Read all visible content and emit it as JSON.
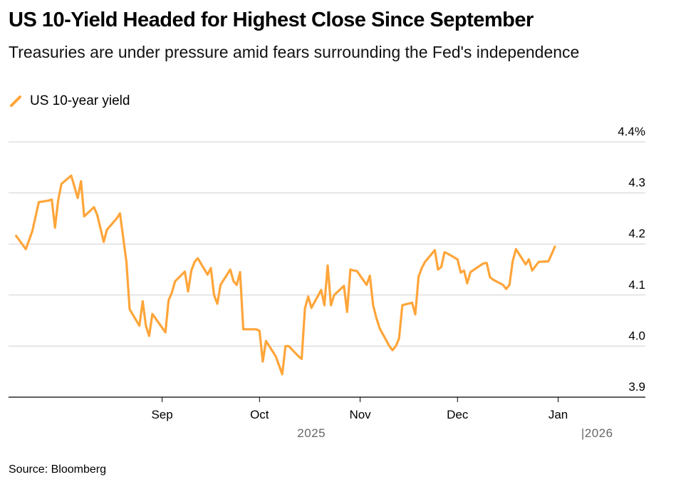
{
  "header": {
    "title": "US 10-Yield Headed for Highest Close Since September",
    "subtitle": "Treasuries are under pressure amid fears surrounding the Fed's independence"
  },
  "footer": {
    "source": "Source: Bloomberg"
  },
  "colors": {
    "line": "#FFA53A",
    "grid": "#D0D0D0",
    "axis": "#000000"
  },
  "chart_data": {
    "type": "line",
    "title": "US 10-Yield Headed for Highest Close Since September",
    "subtitle": "Treasuries are under pressure amid fears surrounding the Fed's independence",
    "legend": "top-left",
    "grid": true,
    "ylim": [
      3.9,
      4.4
    ],
    "xlim": [
      "2025-07-17",
      "2026-01-27"
    ],
    "y_ticks": [
      {
        "value": 4.4,
        "label": "4.4%"
      },
      {
        "value": 4.3,
        "label": "4.3"
      },
      {
        "value": 4.2,
        "label": "4.2"
      },
      {
        "value": 4.1,
        "label": "4.1"
      },
      {
        "value": 4.0,
        "label": "4.0"
      },
      {
        "value": 3.9,
        "label": "3.9"
      }
    ],
    "x_ticks": [
      {
        "date": "2025-09-01",
        "label": "Sep"
      },
      {
        "date": "2025-10-01",
        "label": "Oct"
      },
      {
        "date": "2025-11-01",
        "label": "Nov"
      },
      {
        "date": "2025-12-01",
        "label": "Dec"
      },
      {
        "date": "2026-01-01",
        "label": "Jan"
      }
    ],
    "year_labels": [
      {
        "date": "2025-10-17",
        "label": "2025"
      },
      {
        "date": "2026-01-13",
        "label": "|2026"
      }
    ],
    "series": [
      {
        "name": "US 10-year yield",
        "points": [
          [
            "2025-07-18",
            4.216
          ],
          [
            "2025-07-21",
            4.19
          ],
          [
            "2025-07-23",
            4.225
          ],
          [
            "2025-07-25",
            4.282
          ],
          [
            "2025-07-28",
            4.285
          ],
          [
            "2025-07-29",
            4.287
          ],
          [
            "2025-07-30",
            4.232
          ],
          [
            "2025-07-31",
            4.287
          ],
          [
            "2025-08-01",
            4.318
          ],
          [
            "2025-08-04",
            4.334
          ],
          [
            "2025-08-05",
            4.312
          ],
          [
            "2025-08-06",
            4.29
          ],
          [
            "2025-08-07",
            4.323
          ],
          [
            "2025-08-08",
            4.254
          ],
          [
            "2025-08-11",
            4.272
          ],
          [
            "2025-08-12",
            4.257
          ],
          [
            "2025-08-14",
            4.204
          ],
          [
            "2025-08-15",
            4.228
          ],
          [
            "2025-08-18",
            4.25
          ],
          [
            "2025-08-19",
            4.26
          ],
          [
            "2025-08-21",
            4.165
          ],
          [
            "2025-08-22",
            4.072
          ],
          [
            "2025-08-25",
            4.04
          ],
          [
            "2025-08-26",
            4.088
          ],
          [
            "2025-08-27",
            4.04
          ],
          [
            "2025-08-28",
            4.02
          ],
          [
            "2025-08-29",
            4.063
          ],
          [
            "2025-09-02",
            4.027
          ],
          [
            "2025-09-03",
            4.09
          ],
          [
            "2025-09-04",
            4.105
          ],
          [
            "2025-09-05",
            4.127
          ],
          [
            "2025-09-08",
            4.146
          ],
          [
            "2025-09-09",
            4.107
          ],
          [
            "2025-09-10",
            4.148
          ],
          [
            "2025-09-11",
            4.165
          ],
          [
            "2025-09-12",
            4.172
          ],
          [
            "2025-09-15",
            4.14
          ],
          [
            "2025-09-16",
            4.153
          ],
          [
            "2025-09-17",
            4.1
          ],
          [
            "2025-09-18",
            4.083
          ],
          [
            "2025-09-19",
            4.12
          ],
          [
            "2025-09-22",
            4.15
          ],
          [
            "2025-09-23",
            4.127
          ],
          [
            "2025-09-24",
            4.12
          ],
          [
            "2025-09-25",
            4.145
          ],
          [
            "2025-09-26",
            4.033
          ],
          [
            "2025-09-29",
            4.033
          ],
          [
            "2025-09-30",
            4.033
          ],
          [
            "2025-10-01",
            4.03
          ],
          [
            "2025-10-02",
            3.97
          ],
          [
            "2025-10-03",
            4.01
          ],
          [
            "2025-10-06",
            3.98
          ],
          [
            "2025-10-08",
            3.945
          ],
          [
            "2025-10-09",
            4.0
          ],
          [
            "2025-10-10",
            4.0
          ],
          [
            "2025-10-13",
            3.98
          ],
          [
            "2025-10-14",
            3.975
          ],
          [
            "2025-10-15",
            4.074
          ],
          [
            "2025-10-16",
            4.097
          ],
          [
            "2025-10-17",
            4.075
          ],
          [
            "2025-10-20",
            4.11
          ],
          [
            "2025-10-21",
            4.08
          ],
          [
            "2025-10-22",
            4.158
          ],
          [
            "2025-10-23",
            4.08
          ],
          [
            "2025-10-24",
            4.1
          ],
          [
            "2025-10-27",
            4.118
          ],
          [
            "2025-10-28",
            4.067
          ],
          [
            "2025-10-29",
            4.15
          ],
          [
            "2025-10-30",
            4.148
          ],
          [
            "2025-10-31",
            4.147
          ],
          [
            "2025-11-03",
            4.12
          ],
          [
            "2025-11-04",
            4.138
          ],
          [
            "2025-11-05",
            4.08
          ],
          [
            "2025-11-06",
            4.055
          ],
          [
            "2025-11-07",
            4.035
          ],
          [
            "2025-11-10",
            4.0
          ],
          [
            "2025-11-11",
            3.992
          ],
          [
            "2025-11-12",
            4.0
          ],
          [
            "2025-11-13",
            4.015
          ],
          [
            "2025-11-14",
            4.08
          ],
          [
            "2025-11-17",
            4.085
          ],
          [
            "2025-11-18",
            4.062
          ],
          [
            "2025-11-19",
            4.136
          ],
          [
            "2025-11-20",
            4.153
          ],
          [
            "2025-11-21",
            4.165
          ],
          [
            "2025-11-24",
            4.188
          ],
          [
            "2025-11-25",
            4.15
          ],
          [
            "2025-11-26",
            4.155
          ],
          [
            "2025-11-27",
            4.184
          ],
          [
            "2025-11-28",
            4.181
          ],
          [
            "2025-12-01",
            4.17
          ],
          [
            "2025-12-02",
            4.144
          ],
          [
            "2025-12-03",
            4.148
          ],
          [
            "2025-12-04",
            4.123
          ],
          [
            "2025-12-05",
            4.145
          ],
          [
            "2025-12-08",
            4.158
          ],
          [
            "2025-12-09",
            4.162
          ],
          [
            "2025-12-10",
            4.163
          ],
          [
            "2025-12-11",
            4.135
          ],
          [
            "2025-12-12",
            4.13
          ],
          [
            "2025-12-15",
            4.12
          ],
          [
            "2025-12-16",
            4.112
          ],
          [
            "2025-12-17",
            4.12
          ],
          [
            "2025-12-18",
            4.166
          ],
          [
            "2025-12-19",
            4.19
          ],
          [
            "2025-12-22",
            4.16
          ],
          [
            "2025-12-23",
            4.17
          ],
          [
            "2025-12-24",
            4.148
          ],
          [
            "2025-12-26",
            4.165
          ],
          [
            "2025-12-29",
            4.166
          ],
          [
            "2025-12-30",
            4.18
          ],
          [
            "2025-12-31",
            4.195
          ]
        ]
      }
    ]
  }
}
